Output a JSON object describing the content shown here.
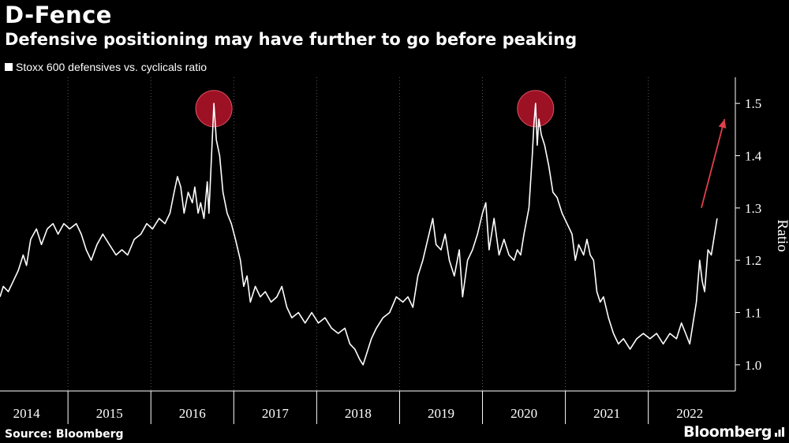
{
  "header": {
    "title": "D-Fence",
    "subtitle": "Defensive positioning may have further to go before peaking"
  },
  "footer": {
    "source": "Source: Bloomberg",
    "brand": "Bloomberg"
  },
  "colors": {
    "background": "#000000",
    "line": "#ffffff",
    "grid": "#5a5a5a",
    "highlight": "#b8142a",
    "arrow": "#e0404a"
  },
  "chart_data": {
    "type": "line",
    "title": "D-Fence",
    "subtitle": "Defensive positioning may have further to go before peaking",
    "legend": [
      "Stoxx 600 defensives vs. cyclicals ratio"
    ],
    "legend_placement": "top-left",
    "xlabel": "",
    "ylabel": "Ratio",
    "ylim": [
      0.95,
      1.55
    ],
    "xlim": [
      2013.68,
      2022.55
    ],
    "y_ticks": [
      1.0,
      1.1,
      1.2,
      1.3,
      1.4,
      1.5
    ],
    "y_tick_labels": [
      "1.0",
      "1.1",
      "1.2",
      "1.3",
      "1.4",
      "1.5"
    ],
    "x_tick_labels": [
      "2014",
      "2015",
      "2016",
      "2017",
      "2018",
      "2019",
      "2020",
      "2021",
      "2022"
    ],
    "x_label_positions": [
      2014.0,
      2015.0,
      2016.0,
      2017.0,
      2018.0,
      2019.0,
      2020.0,
      2021.0,
      2022.0
    ],
    "x_boundaries": [
      2014.5,
      2015.5,
      2016.5,
      2017.5,
      2018.5,
      2019.5,
      2020.5,
      2021.5
    ],
    "grid": true,
    "series": [
      {
        "name": "Stoxx 600 defensives vs. cyclicals ratio",
        "points": [
          [
            2013.68,
            1.13
          ],
          [
            2013.72,
            1.15
          ],
          [
            2013.78,
            1.14
          ],
          [
            2013.84,
            1.16
          ],
          [
            2013.9,
            1.18
          ],
          [
            2013.96,
            1.21
          ],
          [
            2014.0,
            1.19
          ],
          [
            2014.05,
            1.24
          ],
          [
            2014.12,
            1.26
          ],
          [
            2014.18,
            1.23
          ],
          [
            2014.25,
            1.26
          ],
          [
            2014.32,
            1.27
          ],
          [
            2014.38,
            1.25
          ],
          [
            2014.45,
            1.27
          ],
          [
            2014.52,
            1.26
          ],
          [
            2014.6,
            1.27
          ],
          [
            2014.66,
            1.25
          ],
          [
            2014.72,
            1.22
          ],
          [
            2014.78,
            1.2
          ],
          [
            2014.85,
            1.23
          ],
          [
            2014.92,
            1.25
          ],
          [
            2015.0,
            1.23
          ],
          [
            2015.08,
            1.21
          ],
          [
            2015.15,
            1.22
          ],
          [
            2015.22,
            1.21
          ],
          [
            2015.3,
            1.24
          ],
          [
            2015.38,
            1.25
          ],
          [
            2015.45,
            1.27
          ],
          [
            2015.52,
            1.26
          ],
          [
            2015.6,
            1.28
          ],
          [
            2015.67,
            1.27
          ],
          [
            2015.73,
            1.29
          ],
          [
            2015.78,
            1.33
          ],
          [
            2015.82,
            1.36
          ],
          [
            2015.86,
            1.34
          ],
          [
            2015.9,
            1.29
          ],
          [
            2015.95,
            1.33
          ],
          [
            2016.0,
            1.31
          ],
          [
            2016.03,
            1.34
          ],
          [
            2016.07,
            1.29
          ],
          [
            2016.1,
            1.31
          ],
          [
            2016.14,
            1.28
          ],
          [
            2016.18,
            1.35
          ],
          [
            2016.2,
            1.29
          ],
          [
            2016.24,
            1.43
          ],
          [
            2016.26,
            1.5
          ],
          [
            2016.29,
            1.43
          ],
          [
            2016.33,
            1.4
          ],
          [
            2016.37,
            1.33
          ],
          [
            2016.42,
            1.29
          ],
          [
            2016.47,
            1.27
          ],
          [
            2016.52,
            1.24
          ],
          [
            2016.58,
            1.2
          ],
          [
            2016.62,
            1.15
          ],
          [
            2016.66,
            1.17
          ],
          [
            2016.7,
            1.12
          ],
          [
            2016.76,
            1.15
          ],
          [
            2016.82,
            1.13
          ],
          [
            2016.88,
            1.14
          ],
          [
            2016.95,
            1.12
          ],
          [
            2017.02,
            1.13
          ],
          [
            2017.08,
            1.15
          ],
          [
            2017.14,
            1.11
          ],
          [
            2017.2,
            1.09
          ],
          [
            2017.28,
            1.1
          ],
          [
            2017.36,
            1.08
          ],
          [
            2017.44,
            1.1
          ],
          [
            2017.52,
            1.08
          ],
          [
            2017.6,
            1.09
          ],
          [
            2017.68,
            1.07
          ],
          [
            2017.76,
            1.06
          ],
          [
            2017.84,
            1.07
          ],
          [
            2017.9,
            1.04
          ],
          [
            2017.96,
            1.03
          ],
          [
            2018.02,
            1.01
          ],
          [
            2018.06,
            1.0
          ],
          [
            2018.1,
            1.02
          ],
          [
            2018.16,
            1.05
          ],
          [
            2018.22,
            1.07
          ],
          [
            2018.3,
            1.09
          ],
          [
            2018.38,
            1.1
          ],
          [
            2018.46,
            1.13
          ],
          [
            2018.54,
            1.12
          ],
          [
            2018.6,
            1.13
          ],
          [
            2018.66,
            1.11
          ],
          [
            2018.72,
            1.17
          ],
          [
            2018.78,
            1.2
          ],
          [
            2018.84,
            1.24
          ],
          [
            2018.9,
            1.28
          ],
          [
            2018.94,
            1.23
          ],
          [
            2019.0,
            1.22
          ],
          [
            2019.05,
            1.25
          ],
          [
            2019.1,
            1.2
          ],
          [
            2019.16,
            1.17
          ],
          [
            2019.22,
            1.22
          ],
          [
            2019.26,
            1.13
          ],
          [
            2019.32,
            1.2
          ],
          [
            2019.38,
            1.22
          ],
          [
            2019.44,
            1.25
          ],
          [
            2019.5,
            1.29
          ],
          [
            2019.54,
            1.31
          ],
          [
            2019.58,
            1.22
          ],
          [
            2019.64,
            1.28
          ],
          [
            2019.7,
            1.21
          ],
          [
            2019.76,
            1.24
          ],
          [
            2019.82,
            1.21
          ],
          [
            2019.88,
            1.2
          ],
          [
            2019.92,
            1.22
          ],
          [
            2019.96,
            1.21
          ],
          [
            2020.0,
            1.25
          ],
          [
            2020.06,
            1.3
          ],
          [
            2020.1,
            1.4
          ],
          [
            2020.12,
            1.46
          ],
          [
            2020.14,
            1.5
          ],
          [
            2020.16,
            1.42
          ],
          [
            2020.18,
            1.47
          ],
          [
            2020.21,
            1.44
          ],
          [
            2020.25,
            1.42
          ],
          [
            2020.3,
            1.38
          ],
          [
            2020.35,
            1.33
          ],
          [
            2020.4,
            1.32
          ],
          [
            2020.46,
            1.29
          ],
          [
            2020.52,
            1.27
          ],
          [
            2020.58,
            1.25
          ],
          [
            2020.62,
            1.2
          ],
          [
            2020.66,
            1.23
          ],
          [
            2020.72,
            1.21
          ],
          [
            2020.76,
            1.24
          ],
          [
            2020.8,
            1.21
          ],
          [
            2020.84,
            1.2
          ],
          [
            2020.88,
            1.14
          ],
          [
            2020.92,
            1.12
          ],
          [
            2020.96,
            1.13
          ],
          [
            2021.02,
            1.09
          ],
          [
            2021.08,
            1.06
          ],
          [
            2021.14,
            1.04
          ],
          [
            2021.2,
            1.05
          ],
          [
            2021.28,
            1.03
          ],
          [
            2021.36,
            1.05
          ],
          [
            2021.44,
            1.06
          ],
          [
            2021.52,
            1.05
          ],
          [
            2021.6,
            1.06
          ],
          [
            2021.68,
            1.04
          ],
          [
            2021.76,
            1.06
          ],
          [
            2021.84,
            1.05
          ],
          [
            2021.9,
            1.08
          ],
          [
            2021.95,
            1.06
          ],
          [
            2022.0,
            1.04
          ],
          [
            2022.04,
            1.08
          ],
          [
            2022.08,
            1.12
          ],
          [
            2022.12,
            1.2
          ],
          [
            2022.15,
            1.16
          ],
          [
            2022.18,
            1.14
          ],
          [
            2022.22,
            1.22
          ],
          [
            2022.26,
            1.21
          ],
          [
            2022.3,
            1.25
          ],
          [
            2022.33,
            1.28
          ]
        ]
      }
    ],
    "annotations": [
      {
        "type": "circle",
        "x": 2016.26,
        "y": 1.49,
        "label": "peak 2016"
      },
      {
        "type": "circle",
        "x": 2020.14,
        "y": 1.49,
        "label": "peak 2020"
      },
      {
        "type": "arrow",
        "from": [
          2022.14,
          1.3
        ],
        "to": [
          2022.42,
          1.47
        ],
        "label": "upward arrow"
      }
    ]
  }
}
